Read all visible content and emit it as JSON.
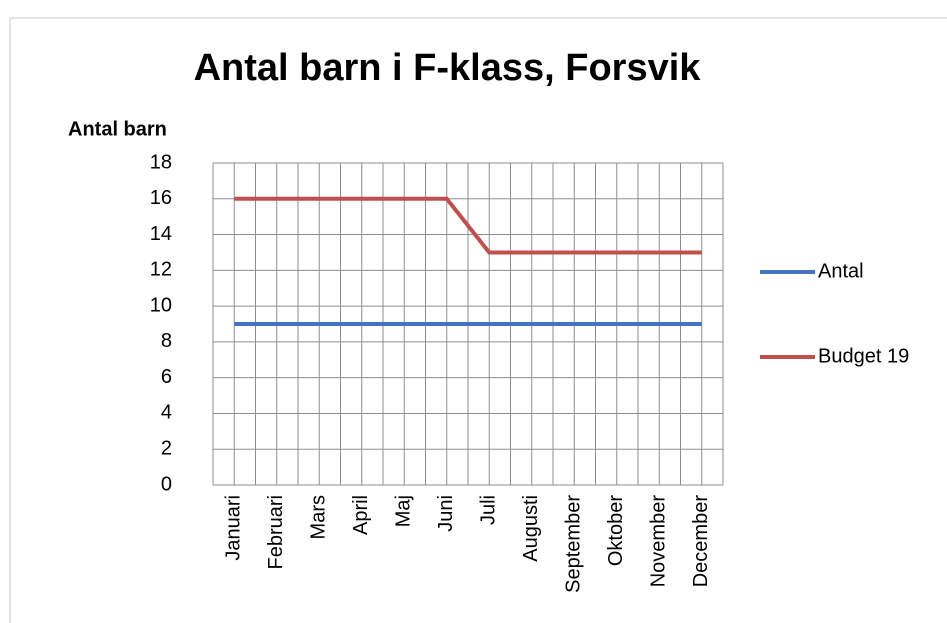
{
  "chart_data": {
    "type": "line",
    "title": "Antal barn i F-klass, Forsvik",
    "ylabel": "Antal barn",
    "categories": [
      "Januari",
      "Februari",
      "Mars",
      "April",
      "Maj",
      "Juni",
      "Juli",
      "Augusti",
      "September",
      "Oktober",
      "November",
      "December"
    ],
    "series": [
      {
        "name": "Antal",
        "color": "#4472c4",
        "values": [
          9,
          9,
          9,
          9,
          9,
          9,
          9,
          9,
          9,
          9,
          9,
          9
        ]
      },
      {
        "name": "Budget 19",
        "color": "#c0504d",
        "values": [
          16,
          16,
          16,
          16,
          16,
          16,
          13,
          13,
          13,
          13,
          13,
          13
        ]
      }
    ],
    "ylim": [
      0,
      18
    ],
    "yticks": [
      0,
      2,
      4,
      6,
      8,
      10,
      12,
      14,
      16,
      18
    ],
    "grid": true,
    "legend": "right"
  }
}
